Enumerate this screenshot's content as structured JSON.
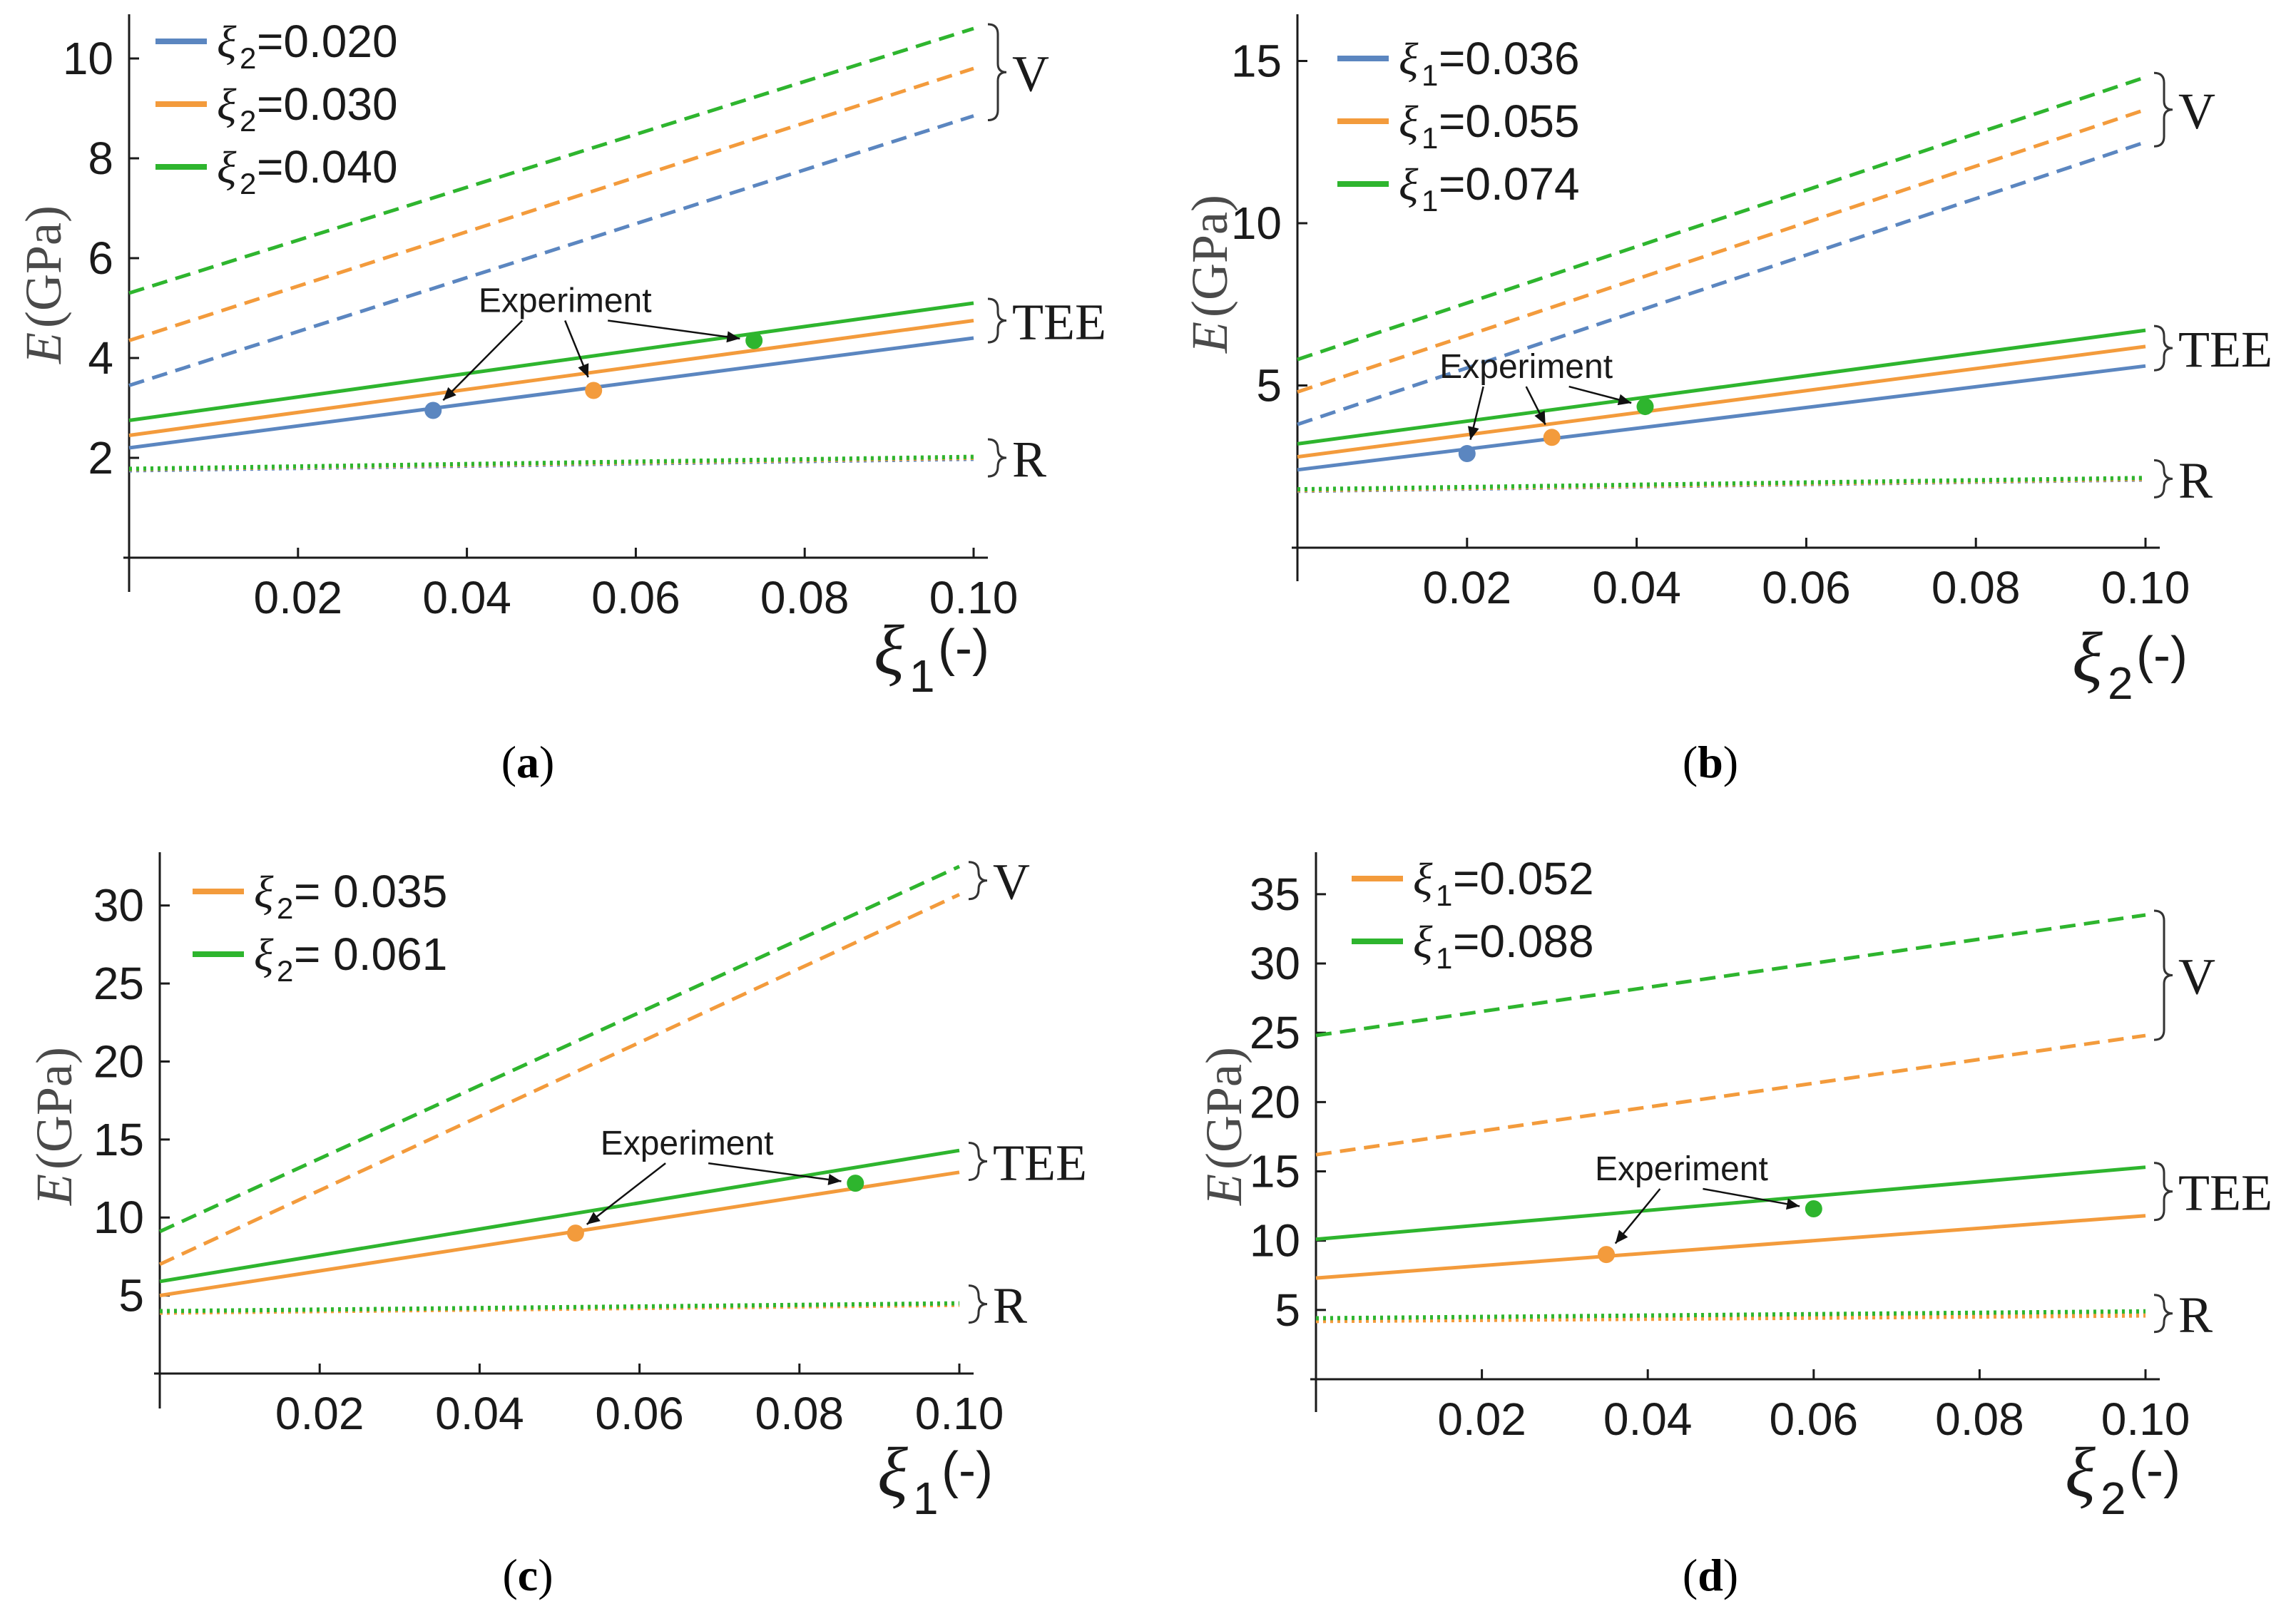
{
  "colors": {
    "blue": "#5b86c0",
    "orange": "#f39b3c",
    "green": "#2eb52e",
    "axis": "#1a1a1a"
  },
  "chart_data": [
    {
      "type": "line",
      "caption_letter": "a",
      "ylabel": "E",
      "ylabel_unit": "(GPa)",
      "xlabel_symbol": "ξ",
      "xlabel_sub": "1",
      "xlabel_unit": "(-)",
      "xlim": [
        0,
        0.1
      ],
      "ylim": [
        0,
        10.6
      ],
      "xticks": [
        0.02,
        0.04,
        0.06,
        0.08,
        0.1
      ],
      "xtick_labels": [
        "0.02",
        "0.04",
        "0.06",
        "0.08",
        "0.10"
      ],
      "yticks": [
        2,
        4,
        6,
        8,
        10
      ],
      "ytick_labels": [
        "2",
        "4",
        "6",
        "8",
        "10"
      ],
      "legend": [
        {
          "symbol": "ξ",
          "sub": "2",
          "value": "=0.020",
          "color": "blue"
        },
        {
          "symbol": "ξ",
          "sub": "2",
          "value": "=0.030",
          "color": "orange"
        },
        {
          "symbol": "ξ",
          "sub": "2",
          "value": "=0.040",
          "color": "green"
        }
      ],
      "series": [
        {
          "group": "V",
          "color": "blue",
          "style": "dashed",
          "x": [
            0,
            0.1
          ],
          "y": [
            3.45,
            8.85
          ]
        },
        {
          "group": "V",
          "color": "orange",
          "style": "dashed",
          "x": [
            0,
            0.1
          ],
          "y": [
            4.35,
            9.8
          ]
        },
        {
          "group": "V",
          "color": "green",
          "style": "dashed",
          "x": [
            0,
            0.1
          ],
          "y": [
            5.3,
            10.6
          ]
        },
        {
          "group": "TEE",
          "color": "blue",
          "style": "solid",
          "x": [
            0,
            0.1
          ],
          "y": [
            2.2,
            4.4
          ]
        },
        {
          "group": "TEE",
          "color": "orange",
          "style": "solid",
          "x": [
            0,
            0.1
          ],
          "y": [
            2.45,
            4.75
          ]
        },
        {
          "group": "TEE",
          "color": "green",
          "style": "solid",
          "x": [
            0,
            0.1
          ],
          "y": [
            2.75,
            5.1
          ]
        },
        {
          "group": "R",
          "color": "blue",
          "style": "dotted",
          "x": [
            0,
            0.1
          ],
          "y": [
            1.75,
            1.98
          ]
        },
        {
          "group": "R",
          "color": "orange",
          "style": "dotted",
          "x": [
            0,
            0.1
          ],
          "y": [
            1.77,
            2.0
          ]
        },
        {
          "group": "R",
          "color": "green",
          "style": "dotted",
          "x": [
            0,
            0.1
          ],
          "y": [
            1.78,
            2.02
          ]
        }
      ],
      "experiment_points": [
        {
          "x": 0.036,
          "y": 2.95,
          "color": "blue"
        },
        {
          "x": 0.055,
          "y": 3.35,
          "color": "orange"
        },
        {
          "x": 0.074,
          "y": 4.35,
          "color": "green"
        }
      ],
      "annotation": "Experiment",
      "group_labels": [
        "V",
        "TEE",
        "R"
      ]
    },
    {
      "type": "line",
      "caption_letter": "b",
      "ylabel": "E",
      "ylabel_unit": "(GPa)",
      "xlabel_symbol": "ξ",
      "xlabel_sub": "2",
      "xlabel_unit": "(-)",
      "xlim": [
        0,
        0.1
      ],
      "ylim": [
        0,
        16
      ],
      "xticks": [
        0.02,
        0.04,
        0.06,
        0.08,
        0.1
      ],
      "xtick_labels": [
        "0.02",
        "0.04",
        "0.06",
        "0.08",
        "0.10"
      ],
      "yticks": [
        5,
        10,
        15
      ],
      "ytick_labels": [
        "5",
        "10",
        "15"
      ],
      "legend": [
        {
          "symbol": "ξ",
          "sub": "1",
          "value": "=0.036",
          "color": "blue"
        },
        {
          "symbol": "ξ",
          "sub": "1",
          "value": "=0.055",
          "color": "orange"
        },
        {
          "symbol": "ξ",
          "sub": "1",
          "value": "=0.074",
          "color": "green"
        }
      ],
      "series": [
        {
          "group": "V",
          "color": "blue",
          "style": "dashed",
          "x": [
            0,
            0.1
          ],
          "y": [
            3.8,
            12.5
          ]
        },
        {
          "group": "V",
          "color": "orange",
          "style": "dashed",
          "x": [
            0,
            0.1
          ],
          "y": [
            4.8,
            13.5
          ]
        },
        {
          "group": "V",
          "color": "green",
          "style": "dashed",
          "x": [
            0,
            0.1
          ],
          "y": [
            5.8,
            14.5
          ]
        },
        {
          "group": "TEE",
          "color": "blue",
          "style": "solid",
          "x": [
            0,
            0.1
          ],
          "y": [
            2.4,
            5.6
          ]
        },
        {
          "group": "TEE",
          "color": "orange",
          "style": "solid",
          "x": [
            0,
            0.1
          ],
          "y": [
            2.8,
            6.2
          ]
        },
        {
          "group": "TEE",
          "color": "green",
          "style": "solid",
          "x": [
            0,
            0.1
          ],
          "y": [
            3.2,
            6.7
          ]
        },
        {
          "group": "R",
          "color": "blue",
          "style": "dotted",
          "x": [
            0,
            0.1
          ],
          "y": [
            1.75,
            2.1
          ]
        },
        {
          "group": "R",
          "color": "orange",
          "style": "dotted",
          "x": [
            0,
            0.1
          ],
          "y": [
            1.77,
            2.12
          ]
        },
        {
          "group": "R",
          "color": "green",
          "style": "dotted",
          "x": [
            0,
            0.1
          ],
          "y": [
            1.8,
            2.15
          ]
        }
      ],
      "experiment_points": [
        {
          "x": 0.02,
          "y": 2.9,
          "color": "blue"
        },
        {
          "x": 0.03,
          "y": 3.4,
          "color": "orange"
        },
        {
          "x": 0.041,
          "y": 4.35,
          "color": "green"
        }
      ],
      "annotation": "Experiment",
      "group_labels": [
        "V",
        "TEE",
        "R"
      ]
    },
    {
      "type": "line",
      "caption_letter": "c",
      "ylabel": "E",
      "ylabel_unit": "(GPa)",
      "xlabel_symbol": "ξ",
      "xlabel_sub": "1",
      "xlabel_unit": "(-)",
      "xlim": [
        0,
        0.1
      ],
      "ylim": [
        0,
        32.5
      ],
      "xticks": [
        0.02,
        0.04,
        0.06,
        0.08,
        0.1
      ],
      "xtick_labels": [
        "0.02",
        "0.04",
        "0.06",
        "0.08",
        "0.10"
      ],
      "yticks": [
        5,
        10,
        15,
        20,
        25,
        30
      ],
      "ytick_labels": [
        "5",
        "10",
        "15",
        "20",
        "25",
        "30"
      ],
      "legend": [
        {
          "symbol": "ξ",
          "sub": "2",
          "value": "= 0.035",
          "color": "orange"
        },
        {
          "symbol": "ξ",
          "sub": "2",
          "value": "= 0.061",
          "color": "green"
        }
      ],
      "series": [
        {
          "group": "V",
          "color": "orange",
          "style": "dashed",
          "x": [
            0,
            0.1
          ],
          "y": [
            7.0,
            30.7
          ]
        },
        {
          "group": "V",
          "color": "green",
          "style": "dashed",
          "x": [
            0,
            0.1
          ],
          "y": [
            9.1,
            32.5
          ]
        },
        {
          "group": "TEE",
          "color": "orange",
          "style": "solid",
          "x": [
            0,
            0.1
          ],
          "y": [
            5.0,
            12.9
          ]
        },
        {
          "group": "TEE",
          "color": "green",
          "style": "solid",
          "x": [
            0,
            0.1
          ],
          "y": [
            5.9,
            14.3
          ]
        },
        {
          "group": "R",
          "color": "orange",
          "style": "dotted",
          "x": [
            0,
            0.1
          ],
          "y": [
            3.9,
            4.4
          ]
        },
        {
          "group": "R",
          "color": "green",
          "style": "dotted",
          "x": [
            0,
            0.1
          ],
          "y": [
            4.0,
            4.5
          ]
        }
      ],
      "experiment_points": [
        {
          "x": 0.052,
          "y": 9.0,
          "color": "orange"
        },
        {
          "x": 0.087,
          "y": 12.2,
          "color": "green"
        }
      ],
      "annotation": "Experiment",
      "group_labels": [
        "V",
        "TEE",
        "R"
      ]
    },
    {
      "type": "line",
      "caption_letter": "d",
      "ylabel": "E",
      "ylabel_unit": "(GPa)",
      "xlabel_symbol": "ξ",
      "xlabel_sub": "2",
      "xlabel_unit": "(-)",
      "xlim": [
        0,
        0.1
      ],
      "ylim": [
        0,
        37
      ],
      "xticks": [
        0.02,
        0.04,
        0.06,
        0.08,
        0.1
      ],
      "xtick_labels": [
        "0.02",
        "0.04",
        "0.06",
        "0.08",
        "0.10"
      ],
      "yticks": [
        5,
        10,
        15,
        20,
        25,
        30,
        35
      ],
      "ytick_labels": [
        "5",
        "10",
        "15",
        "20",
        "25",
        "30",
        "35"
      ],
      "legend": [
        {
          "symbol": "ξ",
          "sub": "1",
          "value": "=0.052",
          "color": "orange"
        },
        {
          "symbol": "ξ",
          "sub": "1",
          "value": "=0.088",
          "color": "green"
        }
      ],
      "series": [
        {
          "group": "V",
          "color": "orange",
          "style": "dashed",
          "x": [
            0,
            0.1
          ],
          "y": [
            16.2,
            24.8
          ]
        },
        {
          "group": "V",
          "color": "green",
          "style": "dashed",
          "x": [
            0,
            0.1
          ],
          "y": [
            24.8,
            33.5
          ]
        },
        {
          "group": "TEE",
          "color": "orange",
          "style": "solid",
          "x": [
            0,
            0.1
          ],
          "y": [
            7.3,
            11.8
          ]
        },
        {
          "group": "TEE",
          "color": "green",
          "style": "solid",
          "x": [
            0,
            0.1
          ],
          "y": [
            10.1,
            15.3
          ]
        },
        {
          "group": "R",
          "color": "orange",
          "style": "dotted",
          "x": [
            0,
            0.1
          ],
          "y": [
            4.2,
            4.6
          ]
        },
        {
          "group": "R",
          "color": "green",
          "style": "dotted",
          "x": [
            0,
            0.1
          ],
          "y": [
            4.4,
            4.9
          ]
        }
      ],
      "experiment_points": [
        {
          "x": 0.035,
          "y": 9.0,
          "color": "orange"
        },
        {
          "x": 0.06,
          "y": 12.3,
          "color": "green"
        }
      ],
      "annotation": "Experiment",
      "group_labels": [
        "V",
        "TEE",
        "R"
      ]
    }
  ]
}
